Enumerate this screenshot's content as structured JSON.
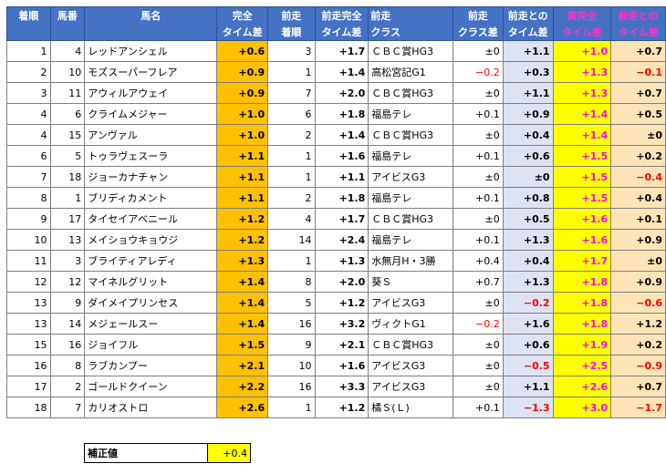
{
  "headers": {
    "rank": [
      "着順",
      ""
    ],
    "num": [
      "馬番",
      ""
    ],
    "horse": [
      "馬名",
      ""
    ],
    "full_diff": [
      "完全",
      "タイム差"
    ],
    "prev_rank": [
      "前走",
      "着順"
    ],
    "prev_full": [
      "前走完全",
      "タイム差"
    ],
    "prev_class": [
      "前走",
      "クラス"
    ],
    "class_diff": [
      "前走",
      "クラス差"
    ],
    "vs_prev": [
      "前走との",
      "タイム差"
    ],
    "true_full": [
      "真完全",
      "タイム差"
    ],
    "vs_prev2": [
      "前走との",
      "タイム差"
    ]
  },
  "rows": [
    {
      "rank": "1",
      "num": "4",
      "horse": "レッドアンシェル",
      "full": "+0.6",
      "prank": "3",
      "pfull": "+1.7",
      "pclass": "ＣＢＣ賞HG3",
      "cdiff": "±0",
      "vsprev": "+1.1",
      "tfull": "+1.0",
      "vs2": "+0.7"
    },
    {
      "rank": "2",
      "num": "10",
      "horse": "モズスーパーフレア",
      "full": "+0.9",
      "prank": "1",
      "pfull": "+1.4",
      "pclass": "高松宮記G1",
      "cdiff": "−0.2",
      "vsprev": "+0.3",
      "tfull": "+1.3",
      "vs2": "−0.1"
    },
    {
      "rank": "3",
      "num": "11",
      "horse": "アウィルアウェイ",
      "full": "+0.9",
      "prank": "7",
      "pfull": "+2.0",
      "pclass": "ＣＢＣ賞HG3",
      "cdiff": "±0",
      "vsprev": "+1.1",
      "tfull": "+1.3",
      "vs2": "+0.7"
    },
    {
      "rank": "4",
      "num": "6",
      "horse": "クライムメジャー",
      "full": "+1.0",
      "prank": "6",
      "pfull": "+1.8",
      "pclass": "福島テレ",
      "cdiff": "+0.1",
      "vsprev": "+0.9",
      "tfull": "+1.4",
      "vs2": "+0.5"
    },
    {
      "rank": "4",
      "num": "15",
      "horse": "アンヴァル",
      "full": "+1.0",
      "prank": "2",
      "pfull": "+1.4",
      "pclass": "ＣＢＣ賞HG3",
      "cdiff": "±0",
      "vsprev": "+0.4",
      "tfull": "+1.4",
      "vs2": "±0"
    },
    {
      "rank": "6",
      "num": "5",
      "horse": "トゥラヴェスーラ",
      "full": "+1.1",
      "prank": "1",
      "pfull": "+1.6",
      "pclass": "福島テレ",
      "cdiff": "+0.1",
      "vsprev": "+0.6",
      "tfull": "+1.5",
      "vs2": "+0.2"
    },
    {
      "rank": "7",
      "num": "18",
      "horse": "ジョーカナチャン",
      "full": "+1.1",
      "prank": "1",
      "pfull": "+1.1",
      "pclass": "アイビスG3",
      "cdiff": "±0",
      "vsprev": "±0",
      "tfull": "+1.5",
      "vs2": "−0.4"
    },
    {
      "rank": "8",
      "num": "1",
      "horse": "ブリディカメント",
      "full": "+1.1",
      "prank": "2",
      "pfull": "+1.8",
      "pclass": "福島テレ",
      "cdiff": "+0.1",
      "vsprev": "+0.8",
      "tfull": "+1.5",
      "vs2": "+0.4"
    },
    {
      "rank": "9",
      "num": "17",
      "horse": "タイセイアベニール",
      "full": "+1.2",
      "prank": "4",
      "pfull": "+1.7",
      "pclass": "ＣＢＣ賞HG3",
      "cdiff": "±0",
      "vsprev": "+0.5",
      "tfull": "+1.6",
      "vs2": "+0.1"
    },
    {
      "rank": "10",
      "num": "13",
      "horse": "メイショウキョウジ",
      "full": "+1.2",
      "prank": "14",
      "pfull": "+2.4",
      "pclass": "福島テレ",
      "cdiff": "+0.1",
      "vsprev": "+1.3",
      "tfull": "+1.6",
      "vs2": "+0.9"
    },
    {
      "rank": "11",
      "num": "3",
      "horse": "ブライティアレディ",
      "full": "+1.3",
      "prank": "1",
      "pfull": "+1.3",
      "pclass": "水無月H・3勝",
      "cdiff": "+0.4",
      "vsprev": "+0.4",
      "tfull": "+1.7",
      "vs2": "±0"
    },
    {
      "rank": "12",
      "num": "12",
      "horse": "マイネルグリット",
      "full": "+1.4",
      "prank": "8",
      "pfull": "+2.0",
      "pclass": "葵Ｓ",
      "cdiff": "+0.7",
      "vsprev": "+1.3",
      "tfull": "+1.8",
      "vs2": "+0.9"
    },
    {
      "rank": "13",
      "num": "9",
      "horse": "ダイメイプリンセス",
      "full": "+1.4",
      "prank": "5",
      "pfull": "+1.2",
      "pclass": "アイビスG3",
      "cdiff": "±0",
      "vsprev": "−0.2",
      "tfull": "+1.8",
      "vs2": "−0.6"
    },
    {
      "rank": "13",
      "num": "14",
      "horse": "メジェールスー",
      "full": "+1.4",
      "prank": "16",
      "pfull": "+3.2",
      "pclass": "ヴィクトG1",
      "cdiff": "−0.2",
      "vsprev": "+1.6",
      "tfull": "+1.8",
      "vs2": "+1.2"
    },
    {
      "rank": "15",
      "num": "16",
      "horse": "ジョイフル",
      "full": "+1.5",
      "prank": "9",
      "pfull": "+2.1",
      "pclass": "ＣＢＣ賞HG3",
      "cdiff": "±0",
      "vsprev": "+0.6",
      "tfull": "+1.9",
      "vs2": "+0.2"
    },
    {
      "rank": "16",
      "num": "8",
      "horse": "ラブカンプー",
      "full": "+2.1",
      "prank": "10",
      "pfull": "+1.6",
      "pclass": "アイビスG3",
      "cdiff": "±0",
      "vsprev": "−0.5",
      "tfull": "+2.5",
      "vs2": "−0.9"
    },
    {
      "rank": "17",
      "num": "2",
      "horse": "ゴールドクイーン",
      "full": "+2.2",
      "prank": "16",
      "pfull": "+3.3",
      "pclass": "アイビスG3",
      "cdiff": "±0",
      "vsprev": "+1.1",
      "tfull": "+2.6",
      "vs2": "+0.7"
    },
    {
      "rank": "18",
      "num": "7",
      "horse": "カリオストロ",
      "full": "+2.6",
      "prank": "1",
      "pfull": "+1.2",
      "pclass": "橘Ｓ(Ｌ)",
      "cdiff": "+0.1",
      "vsprev": "−1.3",
      "tfull": "+3.0",
      "vs2": "−1.7"
    }
  ],
  "correction": {
    "label": "補正値",
    "value": "+0.4"
  },
  "colors": {
    "header_bg": "#4472c4",
    "orange": "#ffc000",
    "lavender": "#dde3f3",
    "yellow": "#ffff00",
    "tan": "#fce4b6",
    "pink_text": "#ff00ff",
    "negative": "#ff0000"
  }
}
